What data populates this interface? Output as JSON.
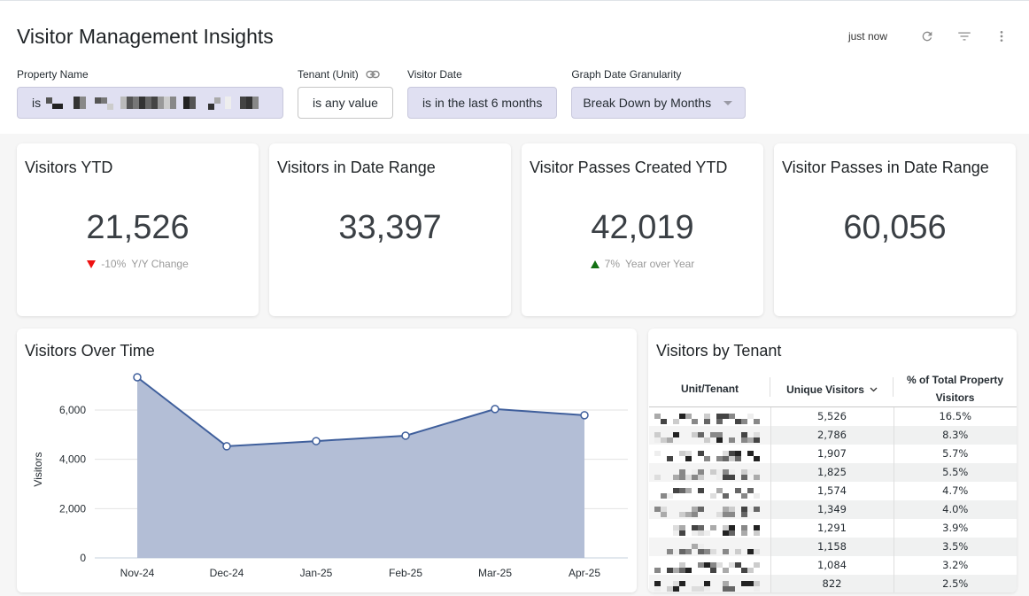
{
  "header": {
    "title": "Visitor Management Insights",
    "updated_label": "just now",
    "icons": [
      "refresh-icon",
      "filter-icon",
      "more-vert-icon"
    ]
  },
  "filters": [
    {
      "label": "Property Name",
      "value_prefix": "is",
      "value_redacted": true,
      "state": "active"
    },
    {
      "label": "Tenant (Unit)",
      "value": "is any value",
      "state": "plain",
      "has_link_icon": true
    },
    {
      "label": "Visitor Date",
      "value": "is in the last 6 months",
      "state": "active"
    },
    {
      "label": "Graph Date Granularity",
      "value": "Break Down by Months",
      "state": "active",
      "dropdown": true
    }
  ],
  "kpis": [
    {
      "title": "Visitors YTD",
      "value": "21,526",
      "change": "-10%",
      "change_label": "Y/Y Change",
      "direction": "down"
    },
    {
      "title": "Visitors in Date Range",
      "value": "33,397"
    },
    {
      "title": "Visitor Passes Created YTD",
      "value": "42,019",
      "change": "7%",
      "change_label": "Year over Year",
      "direction": "up"
    },
    {
      "title": "Visitor Passes in Date Range",
      "value": "60,056"
    }
  ],
  "colors": {
    "line": "#3f5f9c",
    "area": "#b3bed6",
    "down": "#ee1111",
    "up": "#127012",
    "chip_active": "#e0e0f2"
  },
  "chart_panel": {
    "title": "Visitors Over Time"
  },
  "chart_data": {
    "type": "area",
    "title": "Visitors Over Time",
    "xlabel": "",
    "ylabel": "Visitors",
    "categories": [
      "Nov-24",
      "Dec-24",
      "Jan-25",
      "Feb-25",
      "Mar-25",
      "Apr-25"
    ],
    "series": [
      {
        "name": "Visitors",
        "values": [
          7330,
          4530,
          4740,
          4960,
          6040,
          5790
        ]
      }
    ],
    "yticks": [
      0,
      2000,
      4000,
      6000
    ],
    "ytick_labels": [
      "0",
      "2,000",
      "4,000",
      "6,000"
    ],
    "ylim": [
      0,
      7600
    ],
    "grid": true,
    "legend": "none"
  },
  "table_panel": {
    "title": "Visitors by Tenant",
    "columns": [
      "Unit/Tenant",
      "Unique Visitors",
      "% of Total Property Visitors"
    ],
    "sorted_column": "Unique Visitors",
    "rows": [
      {
        "tenant_redacted": true,
        "visitors": "5,526",
        "pct": "16.5%"
      },
      {
        "tenant_redacted": true,
        "visitors": "2,786",
        "pct": "8.3%"
      },
      {
        "tenant_redacted": true,
        "visitors": "1,907",
        "pct": "5.7%"
      },
      {
        "tenant_redacted": true,
        "visitors": "1,825",
        "pct": "5.5%"
      },
      {
        "tenant_redacted": true,
        "visitors": "1,574",
        "pct": "4.7%"
      },
      {
        "tenant_redacted": true,
        "visitors": "1,349",
        "pct": "4.0%"
      },
      {
        "tenant_redacted": true,
        "visitors": "1,291",
        "pct": "3.9%"
      },
      {
        "tenant_redacted": true,
        "visitors": "1,158",
        "pct": "3.5%"
      },
      {
        "tenant_redacted": true,
        "visitors": "1,084",
        "pct": "3.2%"
      },
      {
        "tenant_redacted": true,
        "visitors": "822",
        "pct": "2.5%"
      }
    ]
  }
}
